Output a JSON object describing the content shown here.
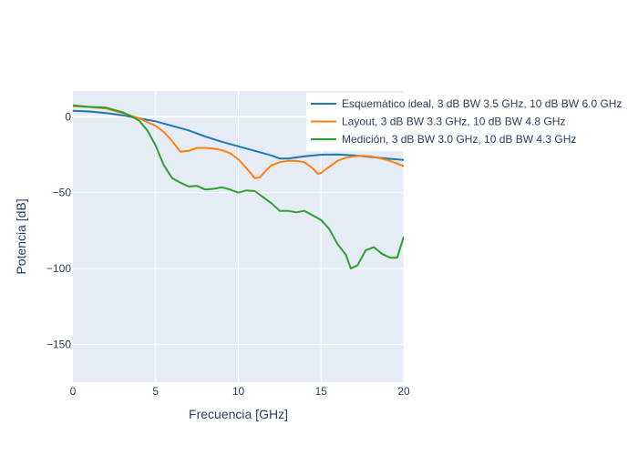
{
  "chart_data": {
    "type": "line",
    "xlabel": "Frecuencia [GHz]",
    "ylabel": "Potencia [dB]",
    "xlim": [
      0,
      20
    ],
    "ylim": [
      -175,
      17
    ],
    "xticks": [
      0,
      5,
      10,
      15,
      20
    ],
    "yticks": [
      0,
      -50,
      -100,
      -150
    ],
    "xtick_labels": [
      "0",
      "5",
      "10",
      "15",
      "20"
    ],
    "ytick_labels": [
      "0",
      "−50",
      "−100",
      "−150"
    ],
    "grid": true,
    "legend_position": "top-right",
    "series": [
      {
        "name": "Esquemático ideal, 3 dB BW 3.5 GHz, 10 dB BW 6.0 GHz",
        "color": "#1f77b4",
        "points": [
          [
            0,
            4
          ],
          [
            1,
            3.5
          ],
          [
            2,
            2.5
          ],
          [
            3,
            1
          ],
          [
            3.5,
            0
          ],
          [
            4,
            -1
          ],
          [
            5,
            -3
          ],
          [
            6,
            -6
          ],
          [
            7,
            -9
          ],
          [
            8,
            -13
          ],
          [
            9,
            -16.5
          ],
          [
            10,
            -19.5
          ],
          [
            11,
            -22.5
          ],
          [
            12,
            -25.5
          ],
          [
            12.5,
            -27.5
          ],
          [
            13,
            -27.5
          ],
          [
            14,
            -26
          ],
          [
            15,
            -25
          ],
          [
            16,
            -24.8
          ],
          [
            17,
            -25.5
          ],
          [
            18,
            -26.5
          ],
          [
            19,
            -27.5
          ],
          [
            20,
            -28.5
          ]
        ]
      },
      {
        "name": "Layout, 3 dB BW 3.3 GHz, 10 dB BW 4.8 GHz",
        "color": "#ff7f0e",
        "points": [
          [
            0,
            7
          ],
          [
            1,
            6.5
          ],
          [
            2,
            5.5
          ],
          [
            3,
            2.5
          ],
          [
            4,
            -1
          ],
          [
            5,
            -6
          ],
          [
            5.5,
            -10
          ],
          [
            6,
            -16
          ],
          [
            6.5,
            -23
          ],
          [
            7,
            -22.5
          ],
          [
            7.5,
            -20.5
          ],
          [
            8,
            -20.5
          ],
          [
            8.5,
            -21
          ],
          [
            9,
            -22
          ],
          [
            9.5,
            -24
          ],
          [
            10,
            -28
          ],
          [
            10.5,
            -34
          ],
          [
            11,
            -40.5
          ],
          [
            11.3,
            -40
          ],
          [
            11.7,
            -35
          ],
          [
            12,
            -32
          ],
          [
            12.5,
            -30
          ],
          [
            13,
            -29
          ],
          [
            13.5,
            -29
          ],
          [
            14,
            -30
          ],
          [
            14.5,
            -34
          ],
          [
            14.8,
            -37.5
          ],
          [
            15,
            -37
          ],
          [
            15.5,
            -33
          ],
          [
            16,
            -29
          ],
          [
            16.5,
            -27
          ],
          [
            17,
            -26
          ],
          [
            17.5,
            -25.7
          ],
          [
            18,
            -26
          ],
          [
            19,
            -28.5
          ],
          [
            20,
            -32.5
          ]
        ]
      },
      {
        "name": "Medición, 3 dB BW 3.0 GHz, 10 dB BW 4.3 GHz",
        "color": "#2ca02c",
        "points": [
          [
            0,
            7.5
          ],
          [
            1,
            6.5
          ],
          [
            2,
            6
          ],
          [
            2.5,
            4.5
          ],
          [
            3,
            3
          ],
          [
            3.5,
            0.5
          ],
          [
            4,
            -2.5
          ],
          [
            4.5,
            -9
          ],
          [
            5,
            -19
          ],
          [
            5.5,
            -32
          ],
          [
            6,
            -40.5
          ],
          [
            6.5,
            -43.5
          ],
          [
            7,
            -46
          ],
          [
            7.5,
            -45.5
          ],
          [
            8,
            -48
          ],
          [
            8.5,
            -47.5
          ],
          [
            9,
            -46.5
          ],
          [
            9.5,
            -48
          ],
          [
            10,
            -50
          ],
          [
            10.5,
            -48.5
          ],
          [
            11,
            -49
          ],
          [
            11.5,
            -53
          ],
          [
            12,
            -57
          ],
          [
            12.5,
            -62
          ],
          [
            13,
            -62
          ],
          [
            13.5,
            -63
          ],
          [
            14,
            -62
          ],
          [
            14.5,
            -65
          ],
          [
            15,
            -68
          ],
          [
            15.5,
            -74
          ],
          [
            16,
            -84
          ],
          [
            16.5,
            -91
          ],
          [
            16.8,
            -100
          ],
          [
            17.2,
            -98
          ],
          [
            17.7,
            -88
          ],
          [
            18.2,
            -86
          ],
          [
            18.7,
            -90.5
          ],
          [
            19.2,
            -93
          ],
          [
            19.6,
            -93
          ],
          [
            20,
            -79
          ]
        ]
      }
    ]
  }
}
